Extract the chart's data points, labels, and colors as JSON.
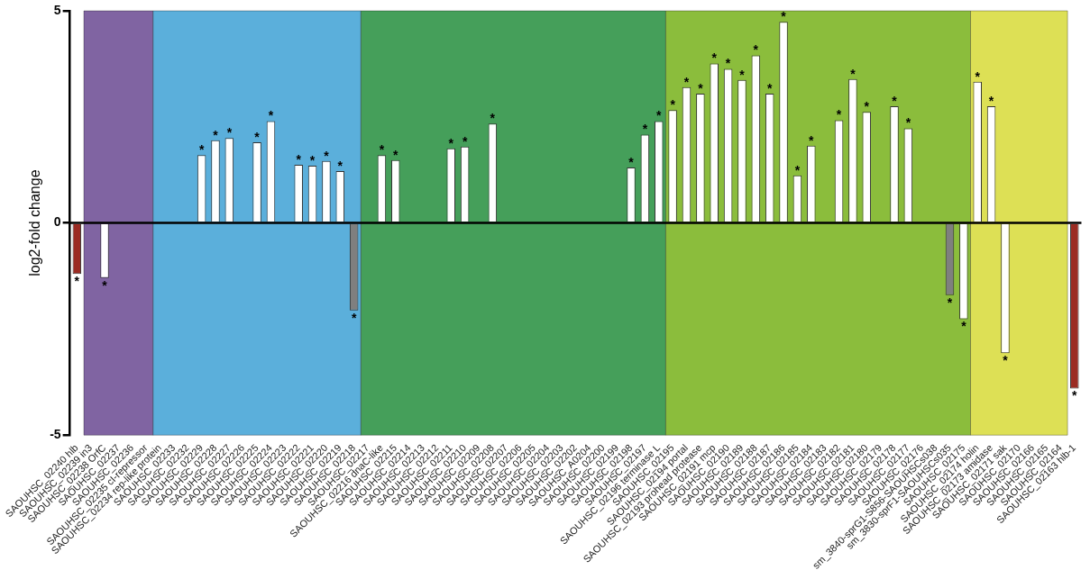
{
  "chart_data": {
    "type": "bar",
    "ylabel": "log2-fold change",
    "categories": [
      "SAOUHSC_02240 hlb",
      "SAOUHSC_02239 in3",
      "SAOUHSC_02238 OrfC",
      "SAOUHSC_02237",
      "SAOUHSC_02236",
      "SAOUHSC_02235 cI-repressor",
      "SAOUHSC_02234 rep-like protein",
      "SAOUHSC_02233",
      "SAOUHSC_02232",
      "SAOUHSC_02229",
      "SAOUHSC_02228",
      "SAOUHSC_02227",
      "SAOUHSC_02226",
      "SAOUHSC_02225",
      "SAOUHSC_02224",
      "SAOUHSC_02223",
      "SAOUHSC_02222",
      "SAOUHSC_02221",
      "SAOUHSC_02220",
      "SAOUHSC_02219",
      "SAOUHSC_02218",
      "SAOUHSC_02217",
      "SAOUHSC_02216 dnaC-like",
      "SAOUHSC_02215",
      "SAOUHSC_02214",
      "SAOUHSC_02213",
      "SAOUHSC_02212",
      "SAOUHSC_02211",
      "SAOUHSC_02210",
      "SAOUHSC_02209",
      "SAOUHSC_02208",
      "SAOUHSC_02207",
      "SAOUHSC_02206",
      "SAOUHSC_02205",
      "SAOUHSC_02204",
      "SAOUHSC_02203",
      "SAOUHSC_02202",
      "SAOUHSC_A0204",
      "SAOUHSC_02200",
      "SAOUHSC_02199",
      "SAOUHSC_02198",
      "SAOUHSC_02197",
      "SAOUHSC_02196 terminase L",
      "SAOUHSC_02195",
      "SAOUHSC_02194 portal",
      "SAOUHSC_02193 prohead protease",
      "SAOUHSC_02191 mcp",
      "SAOUHSC_02190",
      "SAOUHSC_02189",
      "SAOUHSC_02188",
      "SAOUHSC_02187",
      "SAOUHSC_02186",
      "SAOUHSC_02185",
      "SAOUHSC_02184",
      "SAOUHSC_02183",
      "SAOUHSC_02182",
      "SAOUHSC_02181",
      "SAOUHSC_02180",
      "SAOUHSC_02179",
      "SAOUHSC_02178",
      "SAOUHSC_02177",
      "SAOUHSC_02176",
      "sm_3840-sprG1-S856-SAOUHSCs038",
      "sm_3830-sprF1-SAOUHSCs035",
      "SAOUHSC_02175",
      "SAOUHSC_02174 holin",
      "SAOUHSC_02173 amidase",
      "SAOUHSC_02171 sak",
      "SAOUHSC_02170",
      "SAOUHSC_02166",
      "SAOUHSC_02165",
      "SAOUHSC_02164",
      "SAOUHSC_02163 hlb-1"
    ],
    "values": [
      -1.2,
      null,
      -1.3,
      null,
      null,
      null,
      null,
      null,
      null,
      1.6,
      1.95,
      2.0,
      null,
      1.9,
      2.4,
      null,
      1.37,
      1.35,
      1.46,
      1.22,
      -2.06,
      null,
      1.6,
      1.48,
      null,
      null,
      null,
      1.76,
      1.8,
      null,
      2.34,
      null,
      null,
      null,
      null,
      null,
      null,
      null,
      null,
      null,
      1.31,
      2.08,
      2.4,
      2.66,
      3.2,
      3.05,
      3.76,
      3.63,
      3.37,
      3.95,
      3.05,
      4.74,
      1.12,
      1.82,
      null,
      2.42,
      3.39,
      2.62,
      null,
      2.75,
      2.23,
      null,
      null,
      -1.7,
      -2.27,
      3.33,
      2.75,
      -3.07,
      null,
      null,
      null,
      null,
      -3.9
    ],
    "colors": [
      "#9b2b23",
      "#ffffff",
      "#ffffff",
      "#ffffff",
      "#ffffff",
      "#ffffff",
      "#ffffff",
      "#ffffff",
      "#ffffff",
      "#ffffff",
      "#ffffff",
      "#ffffff",
      "#ffffff",
      "#ffffff",
      "#ffffff",
      "#ffffff",
      "#ffffff",
      "#ffffff",
      "#ffffff",
      "#ffffff",
      "#7f7f7f",
      "#ffffff",
      "#ffffff",
      "#ffffff",
      "#ffffff",
      "#ffffff",
      "#ffffff",
      "#ffffff",
      "#ffffff",
      "#ffffff",
      "#ffffff",
      "#ffffff",
      "#ffffff",
      "#ffffff",
      "#ffffff",
      "#ffffff",
      "#ffffff",
      "#ffffff",
      "#ffffff",
      "#ffffff",
      "#ffffff",
      "#ffffff",
      "#ffffff",
      "#ffffff",
      "#ffffff",
      "#ffffff",
      "#ffffff",
      "#ffffff",
      "#ffffff",
      "#ffffff",
      "#ffffff",
      "#ffffff",
      "#ffffff",
      "#ffffff",
      "#ffffff",
      "#ffffff",
      "#ffffff",
      "#ffffff",
      "#ffffff",
      "#ffffff",
      "#ffffff",
      "#ffffff",
      "#ffffff",
      "#7f7f7f",
      "#ffffff",
      "#ffffff",
      "#ffffff",
      "#ffffff",
      "#ffffff",
      "#ffffff",
      "#ffffff",
      "#ffffff",
      "#9b2b23"
    ],
    "value_labels": [
      "*",
      null,
      "*",
      null,
      null,
      null,
      null,
      null,
      null,
      "*",
      "*",
      "*",
      null,
      "*",
      "*",
      null,
      "*",
      "*",
      "*",
      "*",
      "*",
      null,
      "*",
      "*",
      null,
      null,
      null,
      "*",
      "*",
      null,
      "*",
      null,
      null,
      null,
      null,
      null,
      null,
      null,
      null,
      null,
      "*",
      "*",
      "*",
      "*",
      "*",
      "*",
      "*",
      "*",
      "*",
      "*",
      "*",
      "*",
      "*",
      "*",
      null,
      "*",
      "*",
      "*",
      null,
      "*",
      "*",
      null,
      null,
      "*",
      "*",
      "*",
      "*",
      "*",
      null,
      null,
      null,
      null,
      "*"
    ],
    "bands": [
      {
        "axis": "x",
        "from": "SAOUHSC_02239 in3",
        "to": "SAOUHSC_02235 cI-repressor",
        "color": "#8064a2"
      },
      {
        "axis": "x",
        "from": "SAOUHSC_02234 rep-like protein",
        "to": "SAOUHSC_02218",
        "color": "#5bafdb"
      },
      {
        "axis": "x",
        "from": "SAOUHSC_02217",
        "to": "SAOUHSC_02196 terminase L",
        "color": "#459f5a"
      },
      {
        "axis": "x",
        "from": "SAOUHSC_02195",
        "to": "SAOUHSC_02175",
        "color": "#8bbd3c"
      },
      {
        "axis": "x",
        "from": "SAOUHSC_02174 holin",
        "to": "SAOUHSC_02164",
        "color": "#dde055"
      }
    ],
    "ref_lines": [
      {
        "axis": "y",
        "value": 0,
        "color": "#000000"
      }
    ],
    "ylim": [
      -5,
      5
    ],
    "yticks": [
      -5,
      0,
      5
    ],
    "grid": false,
    "legend": false
  }
}
